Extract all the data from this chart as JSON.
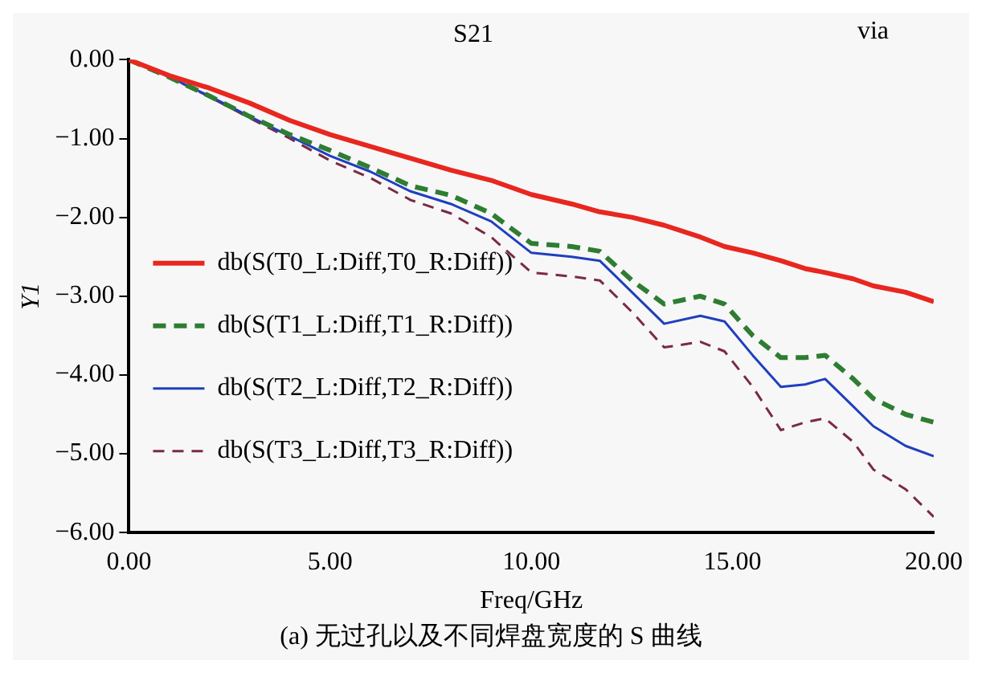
{
  "chart_data": {
    "type": "line",
    "title": "S21",
    "xlabel": "Freq/GHz",
    "ylabel": "Y1",
    "annotations": [
      "via",
      "(a) 无过孔以及不同焊盘宽度的 S 曲线"
    ],
    "x": [
      0,
      1,
      2,
      3,
      4,
      5,
      6,
      7,
      8,
      9,
      10,
      11,
      11.7,
      12.5,
      13.3,
      14.2,
      14.8,
      15.5,
      16.2,
      16.8,
      17.3,
      18,
      18.5,
      19.3,
      20
    ],
    "series": [
      {
        "name": "db(S(T0_L:Diff,T0_R:Diff))",
        "color": "#e8271f",
        "line_style": "solid",
        "values": [
          0,
          -0.2,
          -0.36,
          -0.55,
          -0.77,
          -0.95,
          -1.1,
          -1.25,
          -1.4,
          -1.53,
          -1.71,
          -1.83,
          -1.93,
          -2.0,
          -2.1,
          -2.25,
          -2.37,
          -2.45,
          -2.55,
          -2.65,
          -2.7,
          -2.78,
          -2.87,
          -2.95,
          -3.07
        ]
      },
      {
        "name": "db(S(T1_L:Diff,T1_R:Diff))",
        "color": "#2e7d32",
        "line_style": "dashed",
        "values": [
          0,
          -0.22,
          -0.46,
          -0.72,
          -0.95,
          -1.15,
          -1.37,
          -1.6,
          -1.72,
          -1.95,
          -2.33,
          -2.37,
          -2.43,
          -2.8,
          -3.1,
          -3.0,
          -3.1,
          -3.5,
          -3.78,
          -3.78,
          -3.75,
          -4.05,
          -4.3,
          -4.5,
          -4.6
        ]
      },
      {
        "name": "db(S(T2_L:Diff,T2_R:Diff))",
        "color": "#1f3fbf",
        "line_style": "solid",
        "values": [
          0,
          -0.22,
          -0.46,
          -0.72,
          -0.97,
          -1.22,
          -1.42,
          -1.67,
          -1.83,
          -2.05,
          -2.45,
          -2.5,
          -2.55,
          -2.95,
          -3.35,
          -3.25,
          -3.32,
          -3.75,
          -4.15,
          -4.12,
          -4.05,
          -4.4,
          -4.65,
          -4.9,
          -5.03
        ]
      },
      {
        "name": "db(S(T3_L:Diff,T3_R:Diff))",
        "color": "#7b2a44",
        "line_style": "dashed",
        "values": [
          0,
          -0.22,
          -0.47,
          -0.74,
          -1.0,
          -1.28,
          -1.5,
          -1.78,
          -1.95,
          -2.25,
          -2.7,
          -2.75,
          -2.8,
          -3.2,
          -3.65,
          -3.58,
          -3.7,
          -4.15,
          -4.7,
          -4.6,
          -4.55,
          -4.85,
          -5.2,
          -5.45,
          -5.8
        ]
      }
    ],
    "xlim": [
      0,
      20
    ],
    "xticks": [
      {
        "value": 0,
        "label": "0.00"
      },
      {
        "value": 5,
        "label": "5.00"
      },
      {
        "value": 10,
        "label": "10.00"
      },
      {
        "value": 15,
        "label": "15.00"
      },
      {
        "value": 20,
        "label": "20.00"
      }
    ],
    "ylim": [
      -6,
      0
    ],
    "yticks": [
      {
        "value": 0,
        "label": "0.00"
      },
      {
        "value": -1,
        "label": "−1.00"
      },
      {
        "value": -2,
        "label": "−2.00"
      },
      {
        "value": -3,
        "label": "−3.00"
      },
      {
        "value": -4,
        "label": "−4.00"
      },
      {
        "value": -5,
        "label": "−5.00"
      },
      {
        "value": -6,
        "label": "−6.00"
      }
    ],
    "grid": false,
    "legend": "left",
    "marker": "none"
  }
}
